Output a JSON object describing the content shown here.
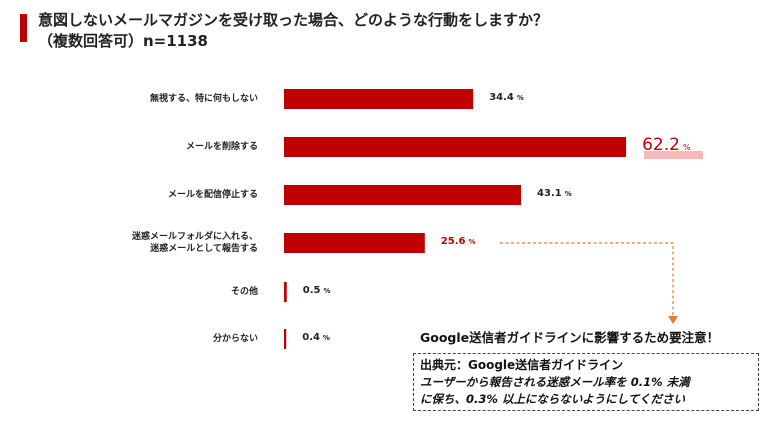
{
  "header": {
    "accent_color": "#c00000",
    "title_line1": "意図しないメールマガジンを受け取った場合、どのような行動をしますか？",
    "title_line2": "（複数回答可）n=1138"
  },
  "chart_data": {
    "type": "bar",
    "orientation": "horizontal",
    "categories": [
      "無視する、特に何もしない",
      "メールを削除する",
      "メールを配信停止する",
      "迷惑メールフォルダに入れる、\n迷惑メールとして報告する",
      "その他",
      "分からない"
    ],
    "values": [
      34.4,
      62.2,
      43.1,
      25.6,
      0.5,
      0.4
    ],
    "value_labels": [
      "34.4",
      "62.2",
      "43.1",
      "25.6",
      "0.5",
      "0.4"
    ],
    "unit": "%",
    "bar_color": "#c00000",
    "highlight_index": 1,
    "warning_index": 3,
    "grid": false,
    "legend": "none"
  },
  "note": {
    "text": "Google送信者ガイドラインに影響するため要注意！",
    "arrow_color": "#e07b39"
  },
  "source": {
    "heading": "出典元：Google送信者ガイドライン",
    "body": "ユーザーから報告される迷惑メール率を 0.1% 未満\nに保ち、0.3% 以上にならないようにしてください"
  }
}
